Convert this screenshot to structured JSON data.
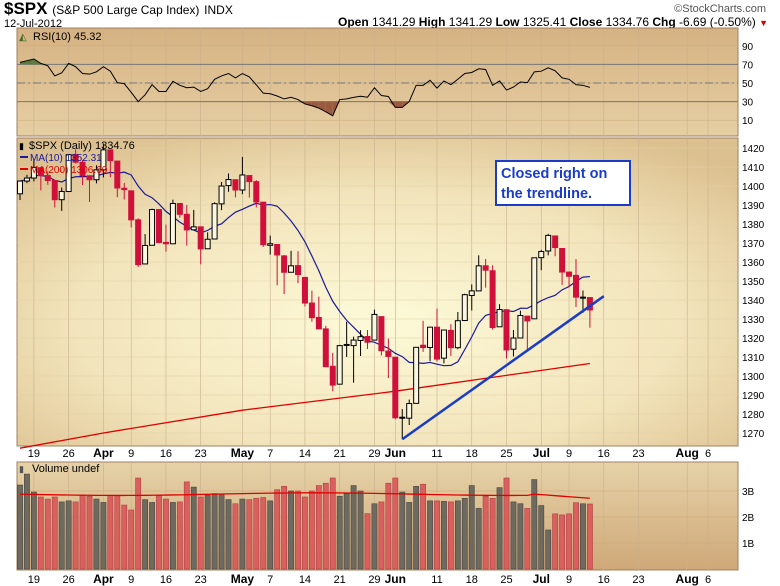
{
  "header": {
    "symbol": "$SPX",
    "name": "(S&P 500 Large Cap Index)",
    "exchange": "INDX",
    "date": "12-Jul-2012",
    "open_label": "Open",
    "open": "1341.29",
    "high_label": "High",
    "high": "1341.29",
    "low_label": "Low",
    "low": "1325.41",
    "close_label": "Close",
    "close": "1334.76",
    "chg_label": "Chg",
    "chg": "-6.69 (-0.50%)",
    "chg_icon": "down-triangle-icon",
    "watermark": "©StockCharts.com"
  },
  "annotation": {
    "text": "Closed right on the trendline.",
    "color": "#1a3cc8"
  },
  "colors": {
    "down": "#d0103a",
    "up": "#000000",
    "ma10": "#1a1a9a",
    "ma200": "#e00000",
    "trendline": "#1a3cc8",
    "vol_down": "#d9605f",
    "vol_up": "#6e6a60"
  },
  "chart_data": [
    {
      "type": "line",
      "panel": "rsi",
      "title": "RSI(10) 45.32",
      "yticks": [
        90,
        70,
        50,
        30,
        10
      ],
      "ylim": [
        0,
        100
      ],
      "reference_lines": [
        70,
        50,
        30
      ],
      "values": [
        72.2,
        74,
        75.8,
        71.1,
        68.5,
        57.6,
        60.9,
        71.1,
        67.5,
        60.2,
        59.5,
        62,
        67.5,
        62.7,
        50.4,
        49.3,
        40,
        30,
        37.3,
        48.2,
        40.9,
        40.9,
        51.8,
        47.5,
        44.9,
        45.6,
        40.9,
        43.8,
        54,
        57.6,
        60.2,
        55.5,
        60.2,
        56.5,
        48,
        39.1,
        38.4,
        36,
        32.9,
        34.7,
        32.2,
        27.5,
        25.5,
        23,
        19,
        14.7,
        32.2,
        32.9,
        34.5,
        35.8,
        34.7,
        44.9,
        36.5,
        35.5,
        23.8,
        23.8,
        30,
        47.5,
        47.5,
        52.9,
        44.5,
        52.2,
        48.2,
        54,
        60.2,
        61.3,
        65.3,
        64.5,
        47.5,
        52.2,
        42.4,
        45.6,
        51.1,
        50.4,
        62,
        62.7,
        66.4,
        63.1,
        55.5,
        54,
        48.2,
        47.5,
        45.32
      ]
    },
    {
      "type": "candlestick",
      "panel": "price",
      "title": "$SPX (Daily) 1334.76",
      "legend": [
        {
          "name": "MA(10) 1352.31",
          "color": "#1a1a9a"
        },
        {
          "name": "MA(200) 1306.60",
          "color": "#e00000"
        }
      ],
      "yticks": [
        1420,
        1410,
        1400,
        1390,
        1380,
        1370,
        1360,
        1350,
        1340,
        1330,
        1320,
        1310,
        1300,
        1290,
        1280,
        1270
      ],
      "dates": [
        "2012-03-15",
        "2012-03-16",
        "2012-03-19",
        "2012-03-20",
        "2012-03-21",
        "2012-03-22",
        "2012-03-23",
        "2012-03-26",
        "2012-03-27",
        "2012-03-28",
        "2012-03-29",
        "2012-03-30",
        "2012-04-02",
        "2012-04-03",
        "2012-04-04",
        "2012-04-05",
        "2012-04-09",
        "2012-04-10",
        "2012-04-11",
        "2012-04-12",
        "2012-04-13",
        "2012-04-16",
        "2012-04-17",
        "2012-04-18",
        "2012-04-19",
        "2012-04-20",
        "2012-04-23",
        "2012-04-24",
        "2012-04-25",
        "2012-04-26",
        "2012-04-27",
        "2012-04-30",
        "2012-05-01",
        "2012-05-02",
        "2012-05-03",
        "2012-05-04",
        "2012-05-07",
        "2012-05-08",
        "2012-05-09",
        "2012-05-10",
        "2012-05-11",
        "2012-05-14",
        "2012-05-15",
        "2012-05-16",
        "2012-05-17",
        "2012-05-18",
        "2012-05-21",
        "2012-05-22",
        "2012-05-23",
        "2012-05-24",
        "2012-05-25",
        "2012-05-29",
        "2012-05-30",
        "2012-05-31",
        "2012-06-01",
        "2012-06-04",
        "2012-06-05",
        "2012-06-06",
        "2012-06-07",
        "2012-06-08",
        "2012-06-11",
        "2012-06-12",
        "2012-06-13",
        "2012-06-14",
        "2012-06-15",
        "2012-06-18",
        "2012-06-19",
        "2012-06-20",
        "2012-06-21",
        "2012-06-22",
        "2012-06-25",
        "2012-06-26",
        "2012-06-27",
        "2012-06-28",
        "2012-06-29",
        "2012-07-02",
        "2012-07-03",
        "2012-07-05",
        "2012-07-06",
        "2012-07-09",
        "2012-07-10",
        "2012-07-11",
        "2012-07-12"
      ],
      "ohlc": [
        [
          1395.9,
          1402.6,
          1392.6,
          1402.6
        ],
        [
          1402.6,
          1405.9,
          1401.5,
          1404.2
        ],
        [
          1404.2,
          1414,
          1402.4,
          1409.8
        ],
        [
          1409.6,
          1409.6,
          1397.7,
          1405.5
        ],
        [
          1405.5,
          1407.8,
          1400.6,
          1402.9
        ],
        [
          1402.9,
          1402.9,
          1388.7,
          1392.8
        ],
        [
          1392.8,
          1399.2,
          1386.9,
          1397.1
        ],
        [
          1397.1,
          1416.6,
          1397.1,
          1416.5
        ],
        [
          1416.6,
          1419.2,
          1411.9,
          1412.5
        ],
        [
          1412.5,
          1413.7,
          1400.5,
          1405.5
        ],
        [
          1405.4,
          1405.4,
          1391.6,
          1403.3
        ],
        [
          1403.3,
          1410.9,
          1401.4,
          1408.5
        ],
        [
          1408.5,
          1422.4,
          1404.5,
          1419.0
        ],
        [
          1418.98,
          1419,
          1404.6,
          1413.4
        ],
        [
          1413.1,
          1413.1,
          1394.1,
          1398.96
        ],
        [
          1398.8,
          1401.6,
          1392.9,
          1398.1
        ],
        [
          1397.45,
          1397.45,
          1378.2,
          1382.2
        ],
        [
          1382.2,
          1383.0,
          1357.4,
          1358.6
        ],
        [
          1358.98,
          1374.7,
          1359,
          1368.7
        ],
        [
          1368.8,
          1388.1,
          1368.8,
          1387.6
        ],
        [
          1387.6,
          1387.6,
          1369.9,
          1370.3
        ],
        [
          1370.3,
          1379.7,
          1365.4,
          1369.6
        ],
        [
          1369.6,
          1392.8,
          1369.6,
          1390.8
        ],
        [
          1390.8,
          1390.8,
          1383.3,
          1385.1
        ],
        [
          1385.1,
          1390.0,
          1368.6,
          1376.9
        ],
        [
          1376.96,
          1387.4,
          1376.96,
          1378.5
        ],
        [
          1378.5,
          1378.5,
          1358.8,
          1366.9
        ],
        [
          1366.97,
          1375.6,
          1366.8,
          1371.97
        ],
        [
          1372.1,
          1391.4,
          1372.1,
          1390.7
        ],
        [
          1390.6,
          1402.1,
          1387.3,
          1399.98
        ],
        [
          1400.2,
          1406.6,
          1397.0,
          1403.4
        ],
        [
          1403.3,
          1403.3,
          1394.0,
          1397.9
        ],
        [
          1397.9,
          1415.3,
          1395.7,
          1405.8
        ],
        [
          1405.5,
          1405.5,
          1393.9,
          1402.3
        ],
        [
          1402.3,
          1403.1,
          1388.7,
          1391.6
        ],
        [
          1391.5,
          1391.5,
          1367.96,
          1369.1
        ],
        [
          1368.8,
          1373.9,
          1363.9,
          1369.6
        ],
        [
          1369.2,
          1369.2,
          1347.75,
          1363.7
        ],
        [
          1363.2,
          1363.7,
          1343.1,
          1354.6
        ],
        [
          1354.6,
          1365.9,
          1354.6,
          1357.99
        ],
        [
          1358.1,
          1365.7,
          1348.9,
          1353.4
        ],
        [
          1351.9,
          1351.9,
          1336.6,
          1338.4
        ],
        [
          1338.4,
          1344.9,
          1328.5,
          1330.7
        ],
        [
          1330.8,
          1341.8,
          1324.8,
          1324.8
        ],
        [
          1324.8,
          1326.4,
          1304.9,
          1304.9
        ],
        [
          1305.1,
          1312.2,
          1291.98,
          1295.2
        ],
        [
          1295.7,
          1316.4,
          1295.7,
          1315.99
        ],
        [
          1316.1,
          1328.5,
          1310.0,
          1316.6
        ],
        [
          1316.0,
          1320.7,
          1296.5,
          1318.9
        ],
        [
          1318.7,
          1324.1,
          1310.5,
          1320.7
        ],
        [
          1320.8,
          1324.2,
          1314.2,
          1317.8
        ],
        [
          1318.9,
          1334.9,
          1318.9,
          1332.4
        ],
        [
          1331.25,
          1331.25,
          1310.8,
          1313.3
        ],
        [
          1313.1,
          1319.7,
          1298.9,
          1310.3
        ],
        [
          1309.9,
          1309.9,
          1277.3,
          1278.0
        ],
        [
          1278.3,
          1282.6,
          1266.7,
          1278.2
        ],
        [
          1277.8,
          1287.6,
          1274.2,
          1285.5
        ],
        [
          1285.6,
          1315.1,
          1285.6,
          1315.1
        ],
        [
          1316.2,
          1329.05,
          1312.7,
          1314.99
        ],
        [
          1314.99,
          1325.8,
          1307.8,
          1325.7
        ],
        [
          1325.7,
          1335.5,
          1307.7,
          1308.9
        ],
        [
          1309.4,
          1324.3,
          1306.6,
          1324.2
        ],
        [
          1324.0,
          1327.3,
          1310.5,
          1314.9
        ],
        [
          1314.9,
          1333.7,
          1314.1,
          1329.1
        ],
        [
          1329.2,
          1343.3,
          1329.2,
          1342.8
        ],
        [
          1342.4,
          1348.2,
          1334.5,
          1344.8
        ],
        [
          1344.8,
          1363.5,
          1344.8,
          1357.98
        ],
        [
          1358.0,
          1361.6,
          1346.5,
          1355.7
        ],
        [
          1355.4,
          1358.3,
          1324.4,
          1325.5
        ],
        [
          1325.9,
          1337.8,
          1325.9,
          1335.0
        ],
        [
          1334.9,
          1334.9,
          1309.3,
          1313.7
        ],
        [
          1314.1,
          1324.2,
          1310.3,
          1319.99
        ],
        [
          1320.0,
          1334.4,
          1320.0,
          1331.85
        ],
        [
          1331.5,
          1331.5,
          1313.3,
          1329.0
        ],
        [
          1330.1,
          1362.2,
          1330.1,
          1362.2
        ],
        [
          1362.3,
          1366.4,
          1355.7,
          1365.5
        ],
        [
          1365.8,
          1374.8,
          1363.5,
          1374.0
        ],
        [
          1373.7,
          1373.9,
          1363.0,
          1367.6
        ],
        [
          1367.1,
          1367.1,
          1348.0,
          1354.7
        ],
        [
          1354.7,
          1354.9,
          1346.6,
          1352.5
        ],
        [
          1352.96,
          1361.5,
          1336.3,
          1341.5
        ],
        [
          1341.4,
          1345.0,
          1333.3,
          1341.5
        ],
        [
          1341.29,
          1341.29,
          1325.41,
          1334.76
        ]
      ],
      "ma200": [
        {
          "date": "2012-03-15",
          "value": 1262
        },
        {
          "date": "2012-04-02",
          "value": 1270
        },
        {
          "date": "2012-05-01",
          "value": 1282
        },
        {
          "date": "2012-06-01",
          "value": 1292
        },
        {
          "date": "2012-07-12",
          "value": 1306.6
        }
      ],
      "trendline": [
        {
          "date": "2012-06-04",
          "value": 1266.7
        },
        {
          "date": "2012-07-16",
          "value": 1342
        }
      ]
    },
    {
      "type": "bar",
      "panel": "volume",
      "title": "Volume undef",
      "yticks": [
        "3B",
        "2B",
        "1B"
      ],
      "ytick_values": [
        3,
        2,
        1
      ],
      "unit": "billions",
      "values": [
        3.23,
        3.65,
        2.96,
        2.77,
        2.69,
        2.77,
        2.58,
        2.62,
        2.58,
        2.85,
        2.8,
        2.69,
        2.56,
        2.83,
        2.83,
        2.46,
        2.27,
        3.5,
        2.67,
        2.56,
        2.83,
        2.69,
        2.56,
        2.58,
        3.35,
        3.15,
        2.77,
        2.83,
        2.9,
        2.88,
        2.67,
        2.51,
        2.69,
        2.67,
        2.72,
        2.75,
        2.62,
        3.05,
        3.18,
        3.0,
        3.0,
        2.77,
        3.0,
        3.21,
        3.3,
        3.5,
        2.8,
        2.9,
        3.21,
        3.0,
        2.13,
        2.51,
        2.58,
        3.3,
        3.5,
        2.96,
        2.56,
        3.18,
        3.26,
        2.62,
        2.62,
        2.6,
        2.58,
        2.62,
        2.72,
        3.21,
        2.33,
        2.8,
        2.72,
        3.13,
        3.5,
        2.58,
        2.51,
        2.33,
        3.44,
        2.44,
        1.5,
        2.12,
        2.08,
        2.12,
        2.55,
        2.51,
        2.5
      ],
      "ma_values_start_end": [
        2.88,
        2.72
      ]
    }
  ],
  "xaxis": {
    "ticks": [
      {
        "label": "19",
        "date": "2012-03-19"
      },
      {
        "label": "26",
        "date": "2012-03-26"
      },
      {
        "label": "Apr",
        "date": "2012-04-02",
        "month": true
      },
      {
        "label": "9",
        "date": "2012-04-09"
      },
      {
        "label": "16",
        "date": "2012-04-16"
      },
      {
        "label": "23",
        "date": "2012-04-23"
      },
      {
        "label": "May",
        "date": "2012-05-01",
        "month": true
      },
      {
        "label": "7",
        "date": "2012-05-07"
      },
      {
        "label": "14",
        "date": "2012-05-14"
      },
      {
        "label": "21",
        "date": "2012-05-21"
      },
      {
        "label": "29",
        "date": "2012-05-29"
      },
      {
        "label": "Jun",
        "date": "2012-06-01",
        "month": true
      },
      {
        "label": "11",
        "date": "2012-06-11"
      },
      {
        "label": "18",
        "date": "2012-06-18"
      },
      {
        "label": "25",
        "date": "2012-06-25"
      },
      {
        "label": "Jul",
        "date": "2012-07-02",
        "month": true
      },
      {
        "label": "9",
        "date": "2012-07-09"
      },
      {
        "label": "16",
        "date": "2012-07-16"
      },
      {
        "label": "23",
        "date": "2012-07-23"
      },
      {
        "label": "Aug",
        "date": "2012-08-01",
        "month": true
      },
      {
        "label": "6",
        "date": "2012-08-06"
      }
    ]
  }
}
